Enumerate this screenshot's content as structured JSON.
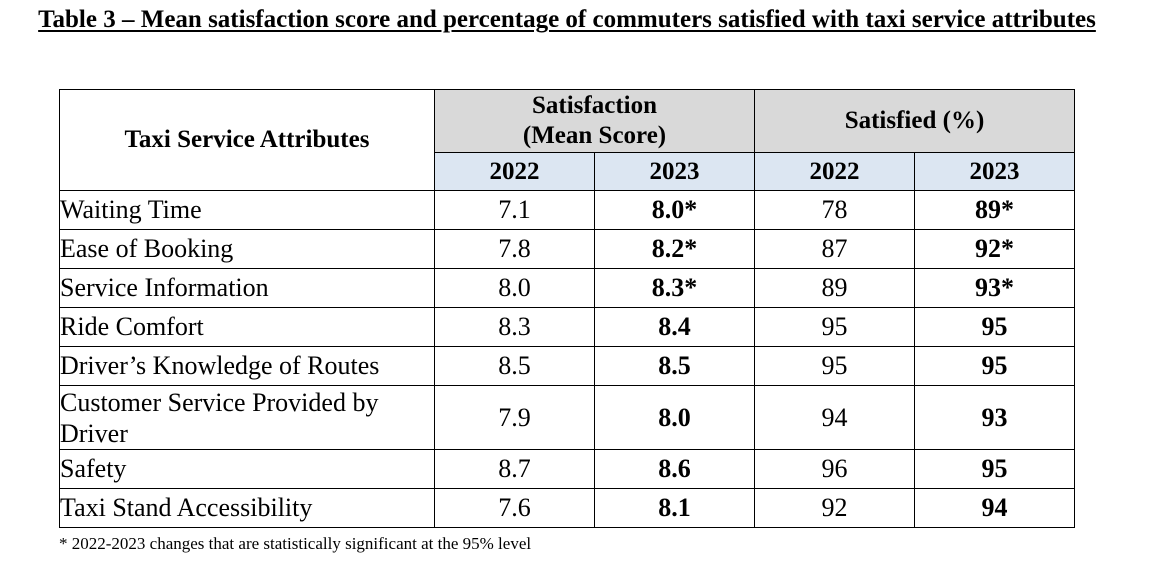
{
  "title": "Table 3 – Mean satisfaction score and percentage of commuters satisfied with taxi service attributes",
  "header": {
    "attribute_label": "Taxi Service Attributes",
    "group_mean_line1": "Satisfaction",
    "group_mean_line2": "(Mean Score)",
    "group_pct": "Satisfied (%)",
    "years": [
      "2022",
      "2023",
      "2022",
      "2023"
    ]
  },
  "rows": [
    {
      "attribute": "Waiting Time",
      "mean_2022": "7.1",
      "mean_2023": "8.0*",
      "pct_2022": "78",
      "pct_2023": "89*"
    },
    {
      "attribute": "Ease of Booking",
      "mean_2022": "7.8",
      "mean_2023": "8.2*",
      "pct_2022": "87",
      "pct_2023": "92*"
    },
    {
      "attribute": "Service Information",
      "mean_2022": "8.0",
      "mean_2023": "8.3*",
      "pct_2022": "89",
      "pct_2023": "93*"
    },
    {
      "attribute": "Ride Comfort",
      "mean_2022": "8.3",
      "mean_2023": "8.4",
      "pct_2022": "95",
      "pct_2023": "95"
    },
    {
      "attribute": "Driver’s Knowledge of Routes",
      "mean_2022": "8.5",
      "mean_2023": "8.5",
      "pct_2022": "95",
      "pct_2023": "95"
    },
    {
      "attribute": "Customer Service Provided by Driver",
      "mean_2022": "7.9",
      "mean_2023": "8.0",
      "pct_2022": "94",
      "pct_2023": "93"
    },
    {
      "attribute": "Safety",
      "mean_2022": "8.7",
      "mean_2023": "8.6",
      "pct_2022": "96",
      "pct_2023": "95"
    },
    {
      "attribute": "Taxi Stand Accessibility",
      "mean_2022": "7.6",
      "mean_2023": "8.1",
      "pct_2022": "92",
      "pct_2023": "94"
    }
  ],
  "footnote": "* 2022-2023 changes that are statistically significant at the 95% level"
}
